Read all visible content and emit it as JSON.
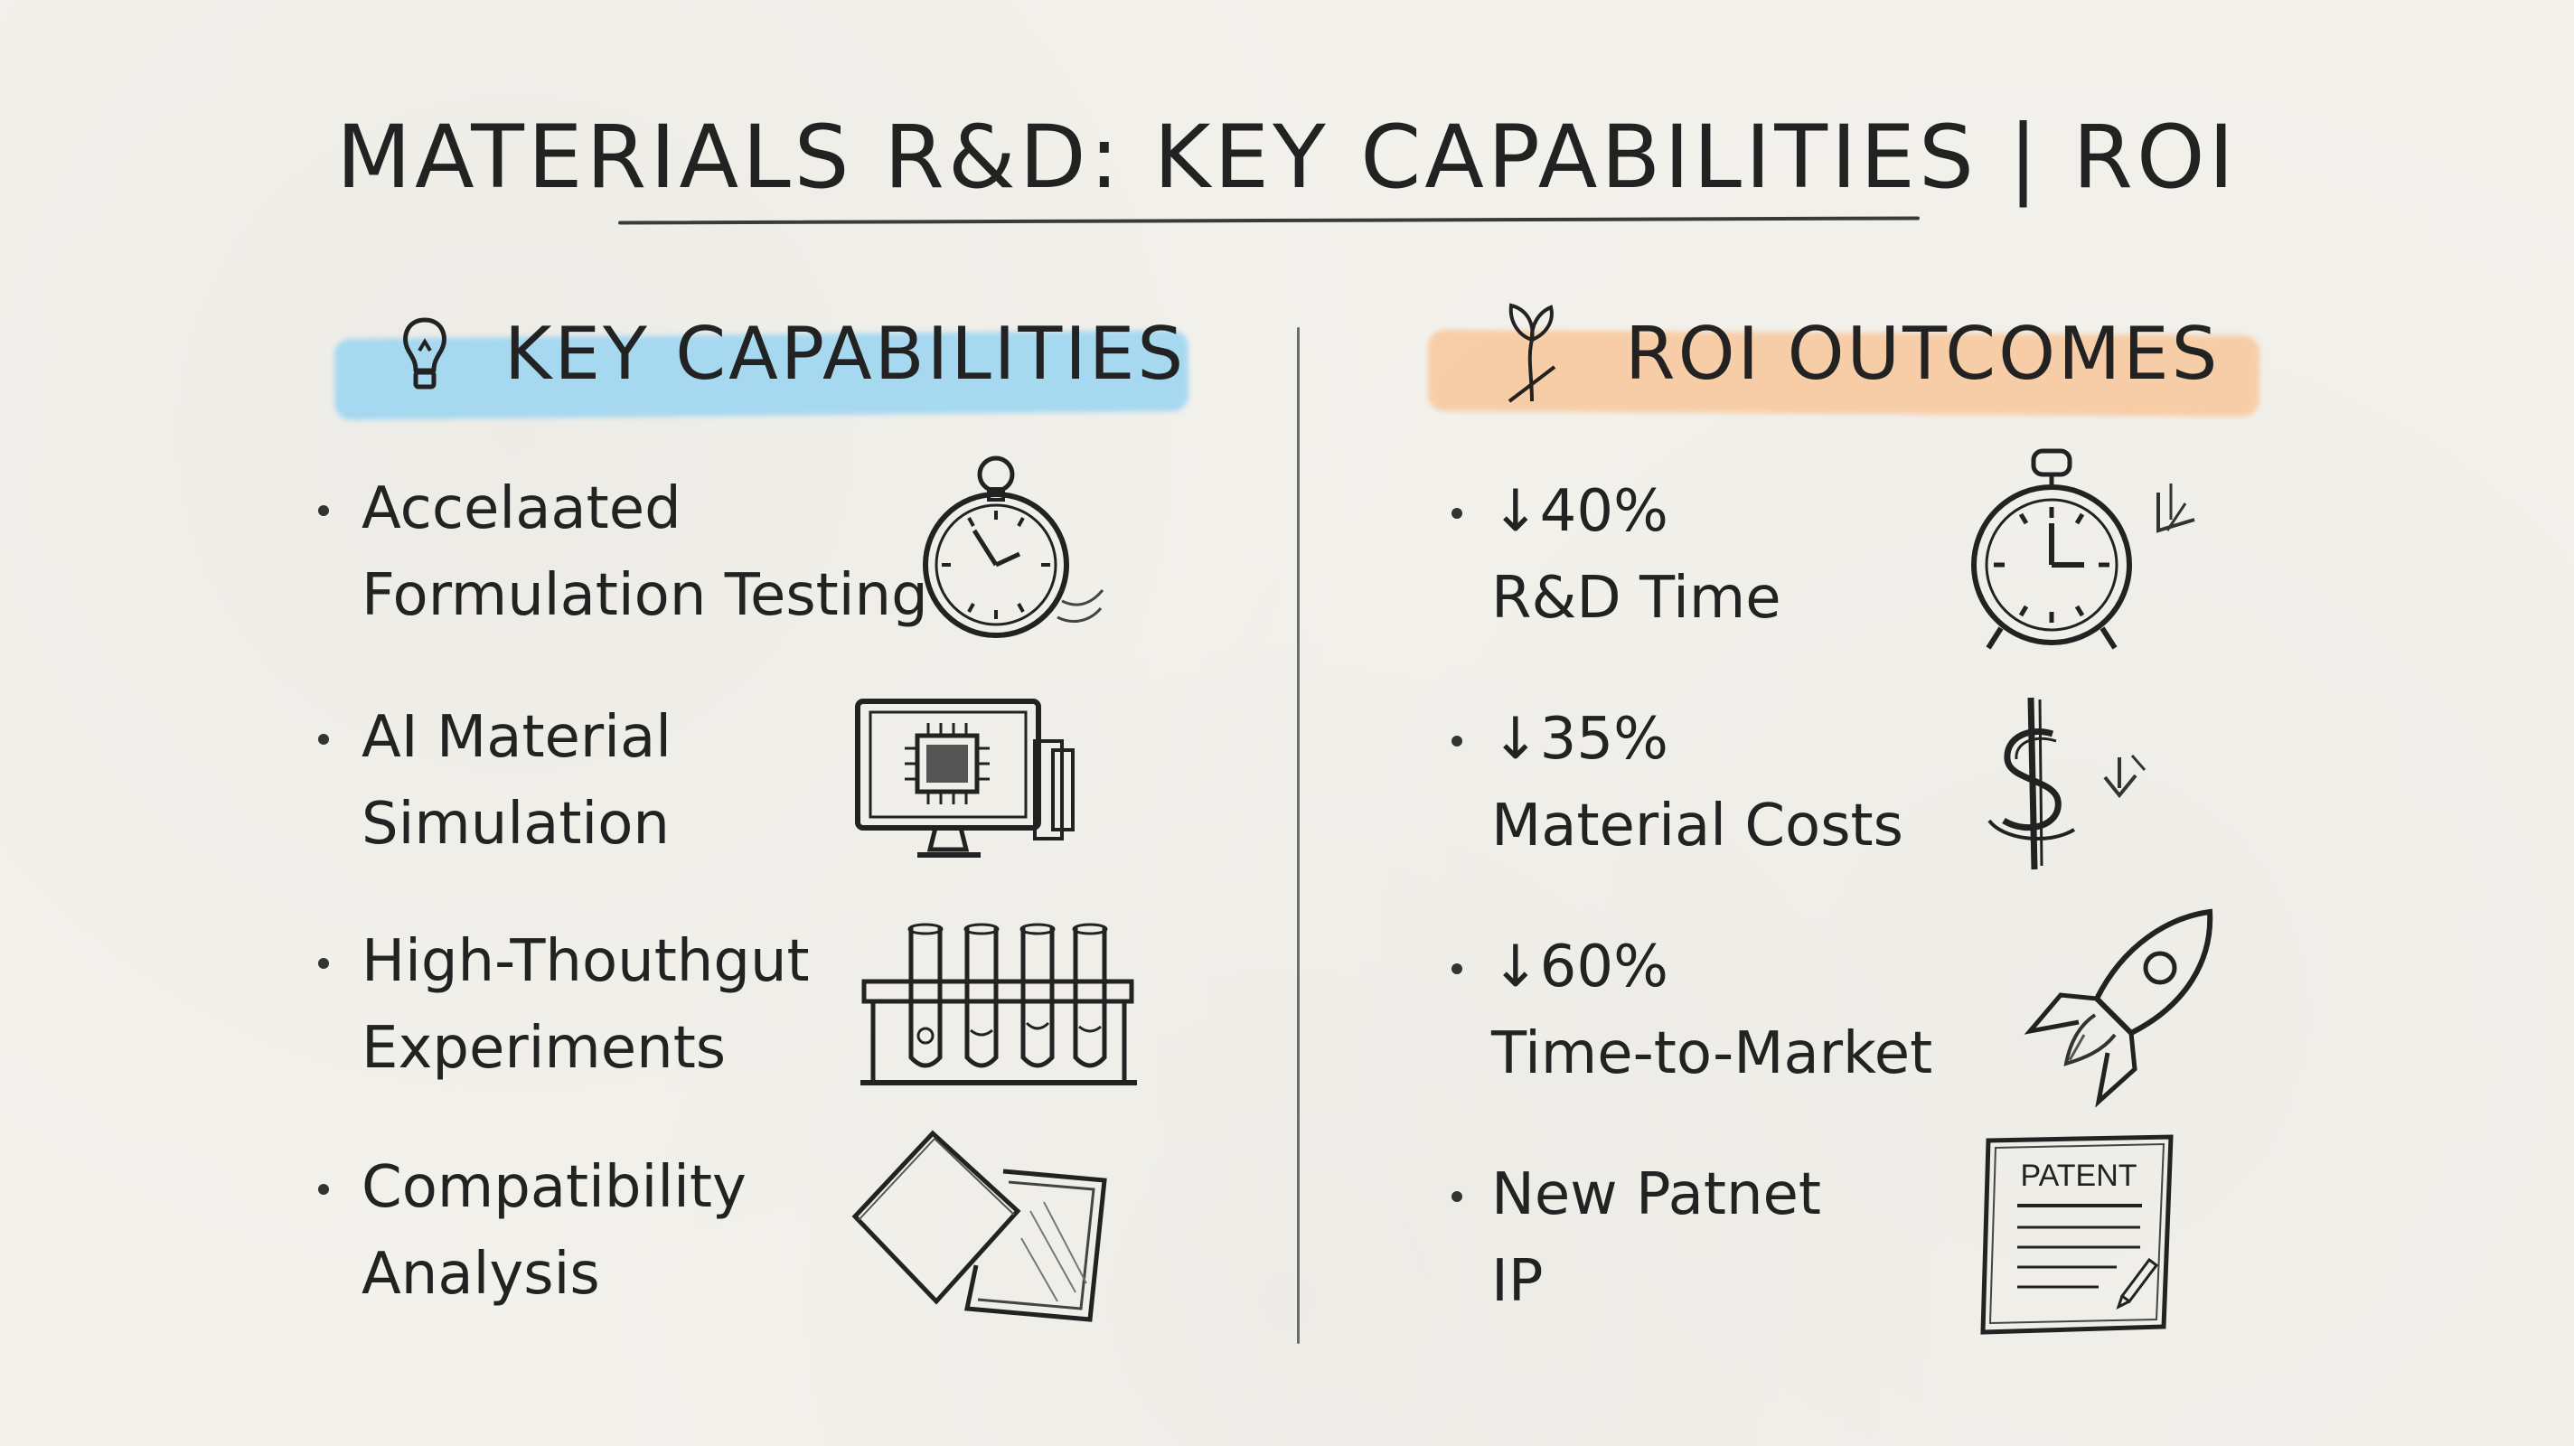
{
  "title": "MATERIALS R&D: KEY CAPABILITIES | ROI",
  "left_section": {
    "heading": "KEY CAPABILITIES",
    "icon": "lightbulb-icon",
    "highlight_color": "#9ad5f2",
    "items": [
      {
        "line1": "Accelaated",
        "line2": "Formulation Testing",
        "icon": "stopwatch-icon"
      },
      {
        "line1": "AI Material",
        "line2": "Simulation",
        "icon": "computer-chip-icon"
      },
      {
        "line1": "High-Thouthgut",
        "line2": "Experiments",
        "icon": "test-tubes-icon"
      },
      {
        "line1": "Compatibility",
        "line2": "Analysis",
        "icon": "material-samples-icon"
      }
    ]
  },
  "right_section": {
    "heading": "ROI OUTCOMES",
    "icon": "growth-sprout-icon",
    "highlight_color": "#f8c89c",
    "items": [
      {
        "line1": "↓40%",
        "line2": "R&D Time",
        "icon": "alarm-clock-icon"
      },
      {
        "line1": "↓35%",
        "line2": "Material Costs",
        "icon": "dollar-down-icon"
      },
      {
        "line1": "↓60%",
        "line2": "Time-to-Market",
        "icon": "rocket-icon"
      },
      {
        "line1": "New Patnet",
        "line2": "IP",
        "icon": "patent-document-icon",
        "icon_label": "PATENT"
      }
    ]
  }
}
